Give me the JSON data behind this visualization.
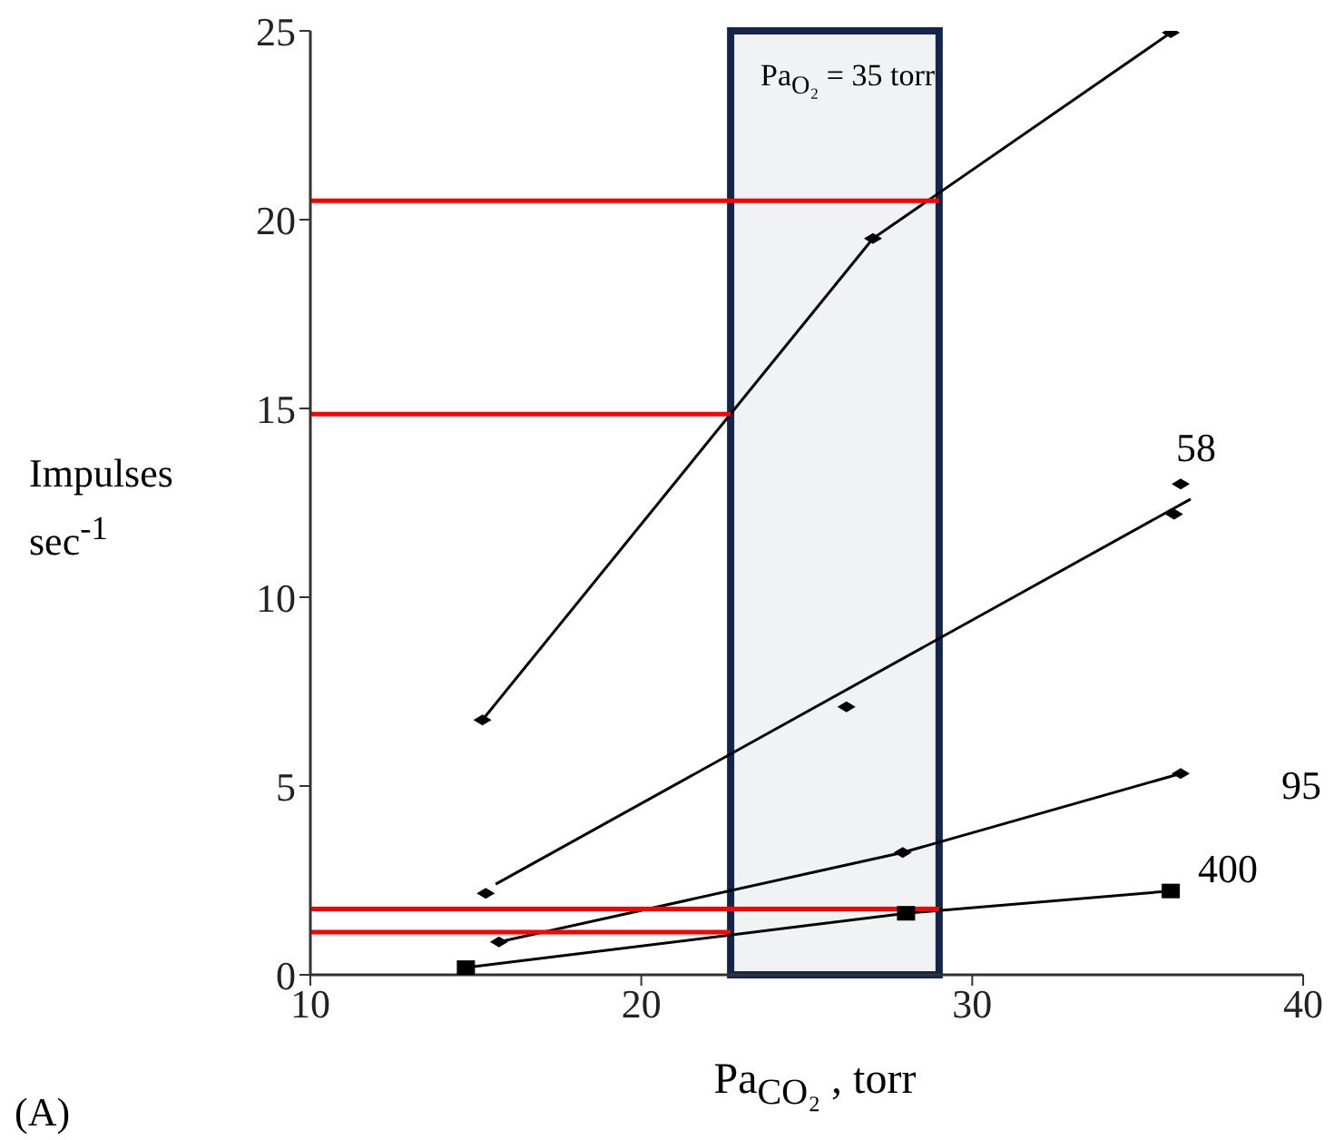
{
  "chart_data": {
    "type": "line",
    "xlabel": "Pa$_{CO₂}$ , torr",
    "ylabel": "Impulses sec$^{-1}$",
    "xlim": [
      10,
      40
    ],
    "xticks": [
      10,
      20,
      30,
      40
    ],
    "ylim": [
      0,
      25
    ],
    "yticks": [
      0,
      5,
      10,
      15,
      20,
      25
    ],
    "grid": false,
    "series": [
      {
        "color": "#000000",
        "marker": "diamond",
        "x": [
          15.2,
          27.0,
          36.0
        ],
        "values": [
          6.75,
          19.5,
          24.95
        ]
      },
      {
        "type": "scatter",
        "color": "#000000",
        "marker": "diamond",
        "x": [
          15.3,
          26.2,
          36.1,
          36.3
        ],
        "values": [
          2.16,
          7.1,
          12.2,
          13.0
        ]
      },
      {
        "color": "#000000",
        "marker": "none",
        "x": [
          15.6,
          36.6
        ],
        "values": [
          2.4,
          12.6
        ]
      },
      {
        "color": "#000000",
        "marker": "diamond",
        "x": [
          15.7,
          27.9,
          36.3
        ],
        "values": [
          0.87,
          3.24,
          5.33
        ]
      },
      {
        "color": "#000000",
        "marker": "square",
        "x": [
          14.7,
          28.0,
          36.0
        ],
        "values": [
          0.19,
          1.63,
          2.22
        ]
      },
      {
        "color": "#ff0000",
        "marker": "none",
        "x": [
          10,
          29.0
        ],
        "values": [
          20.5,
          20.5
        ]
      },
      {
        "color": "#ff0000",
        "marker": "none",
        "x": [
          10,
          22.7
        ],
        "values": [
          14.85,
          14.85
        ]
      },
      {
        "color": "#ff0000",
        "marker": "none",
        "x": [
          10,
          29.0
        ],
        "values": [
          1.74,
          1.74
        ]
      },
      {
        "color": "#ff0000",
        "marker": "none",
        "x": [
          10,
          22.7
        ],
        "values": [
          1.13,
          1.13
        ]
      }
    ],
    "bands": [
      {
        "axis": "x",
        "from": 22.7,
        "to": 29.0,
        "color": "#13264a"
      }
    ],
    "annotations": [
      "Pa$_{O₂}$ = 35 torr",
      "58",
      "95",
      "400",
      "(A)"
    ]
  }
}
